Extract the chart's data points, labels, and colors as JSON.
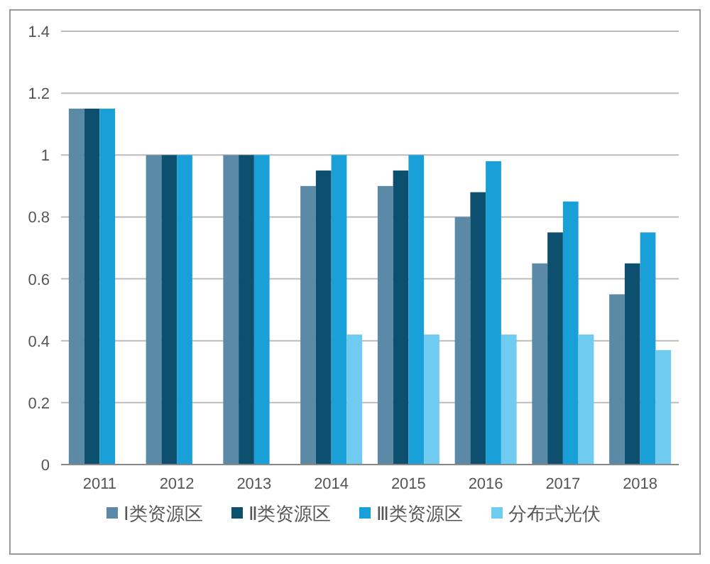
{
  "chart_data": {
    "type": "bar",
    "categories": [
      "2011",
      "2012",
      "2013",
      "2014",
      "2015",
      "2016",
      "2017",
      "2018"
    ],
    "series": [
      {
        "name": "Ⅰ类资源区",
        "color": "#5b8aa6",
        "values": [
          1.15,
          1,
          1,
          0.9,
          0.9,
          0.8,
          0.65,
          0.55
        ]
      },
      {
        "name": "Ⅱ类资源区",
        "color": "#0d4f6e",
        "values": [
          1.15,
          1,
          1,
          0.95,
          0.95,
          0.88,
          0.75,
          0.65
        ]
      },
      {
        "name": "Ⅲ类资源区",
        "color": "#1aa0d8",
        "values": [
          1.15,
          1,
          1,
          1,
          1,
          0.98,
          0.85,
          0.75
        ]
      },
      {
        "name": "分布式光伏",
        "color": "#6fcbef",
        "values": [
          null,
          null,
          null,
          0.42,
          0.42,
          0.42,
          0.42,
          0.37
        ]
      }
    ],
    "ylim": [
      0,
      1.4
    ],
    "yticks": [
      0,
      0.2,
      0.4,
      0.6,
      0.8,
      1,
      1.2,
      1.4
    ],
    "grid": "y",
    "legend": "bottom"
  }
}
